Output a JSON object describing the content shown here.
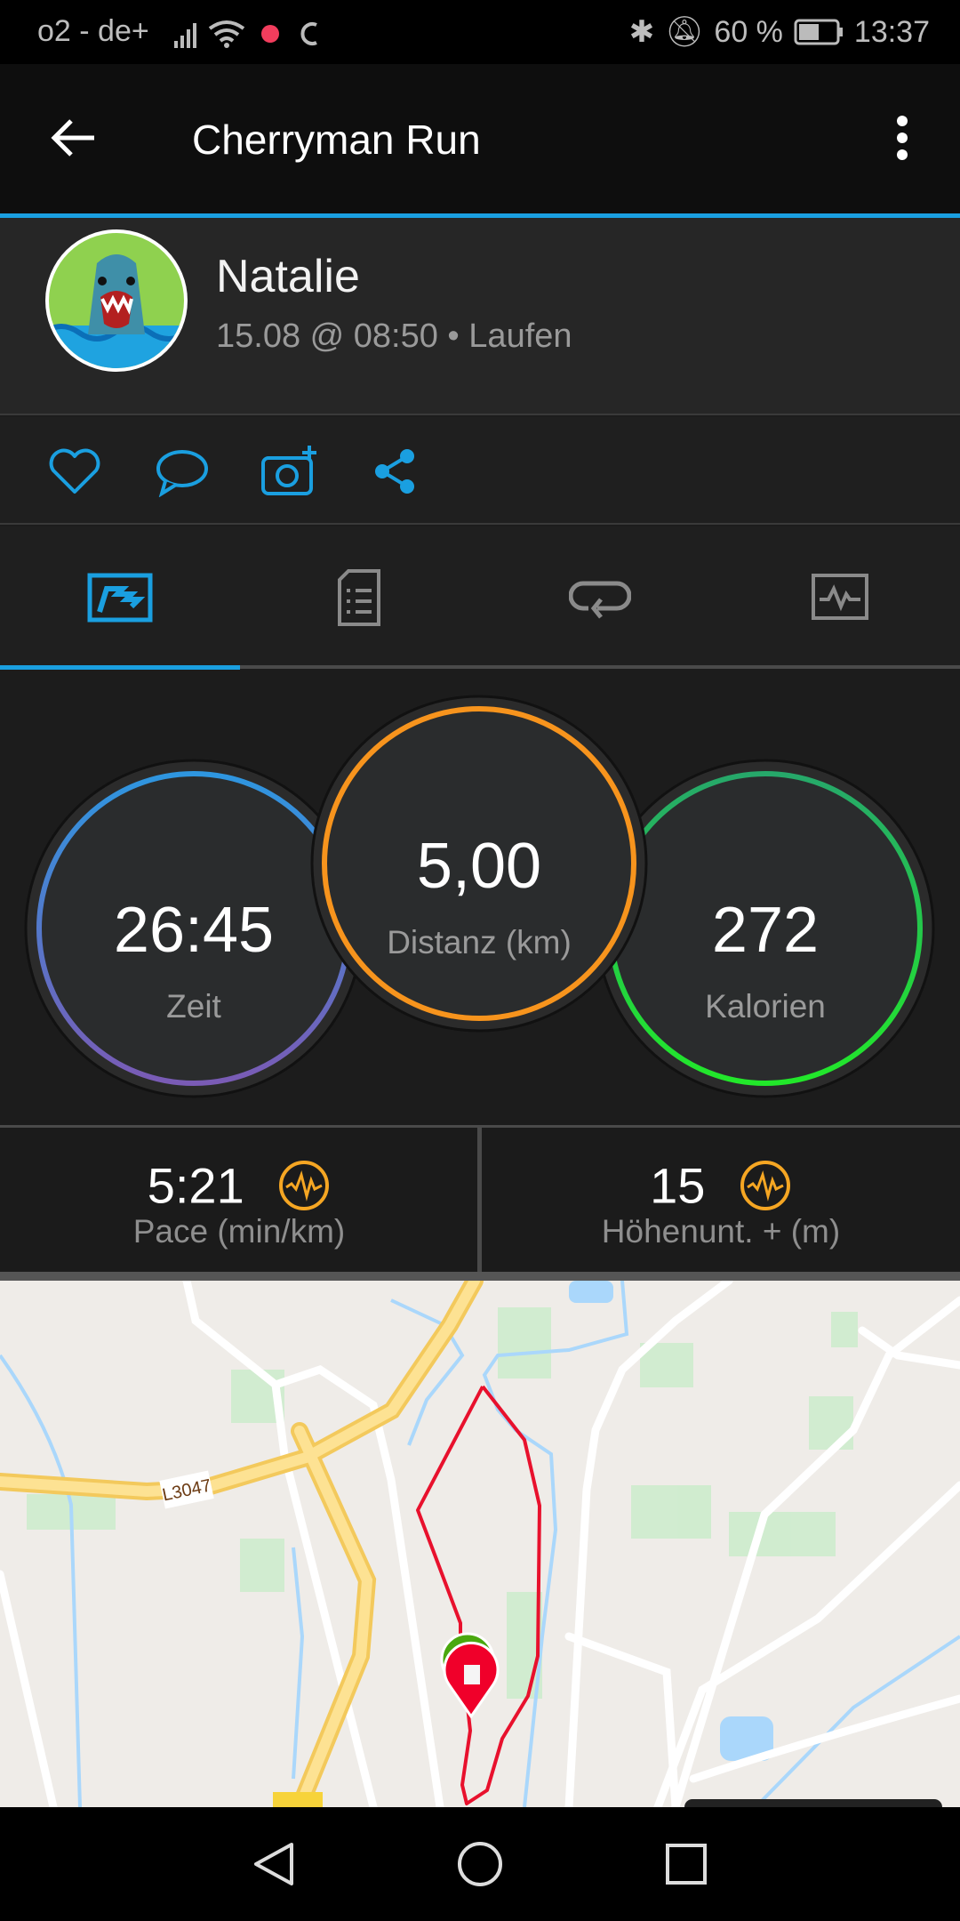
{
  "status_bar": {
    "carrier": "o2 - de+",
    "battery": "60 %",
    "time": "13:37"
  },
  "app_bar": {
    "title": "Cherryman Run"
  },
  "profile": {
    "name": "Natalie",
    "subtitle": "15.08 @ 08:50 • Laufen"
  },
  "tabs": [
    {
      "icon": "overview-icon",
      "active": true
    },
    {
      "icon": "details-icon"
    },
    {
      "icon": "laps-icon"
    },
    {
      "icon": "charts-icon"
    }
  ],
  "stats": {
    "time": {
      "value": "26:45",
      "label": "Zeit"
    },
    "distance": {
      "value": "5,00",
      "label": "Distanz (km)"
    },
    "calories": {
      "value": "272",
      "label": "Kalorien"
    }
  },
  "bottom_stats": [
    {
      "value": "5:21",
      "label": "Pace (min/km)"
    },
    {
      "value": "15",
      "label": "Höhenunt. + (m)"
    }
  ],
  "map": {
    "road_label": "L3047",
    "route_color": "#e8112d"
  },
  "colors": {
    "accent": "#1a9fe0",
    "distance_ring": "#f7941d",
    "chart_icon": "#f5a623"
  }
}
